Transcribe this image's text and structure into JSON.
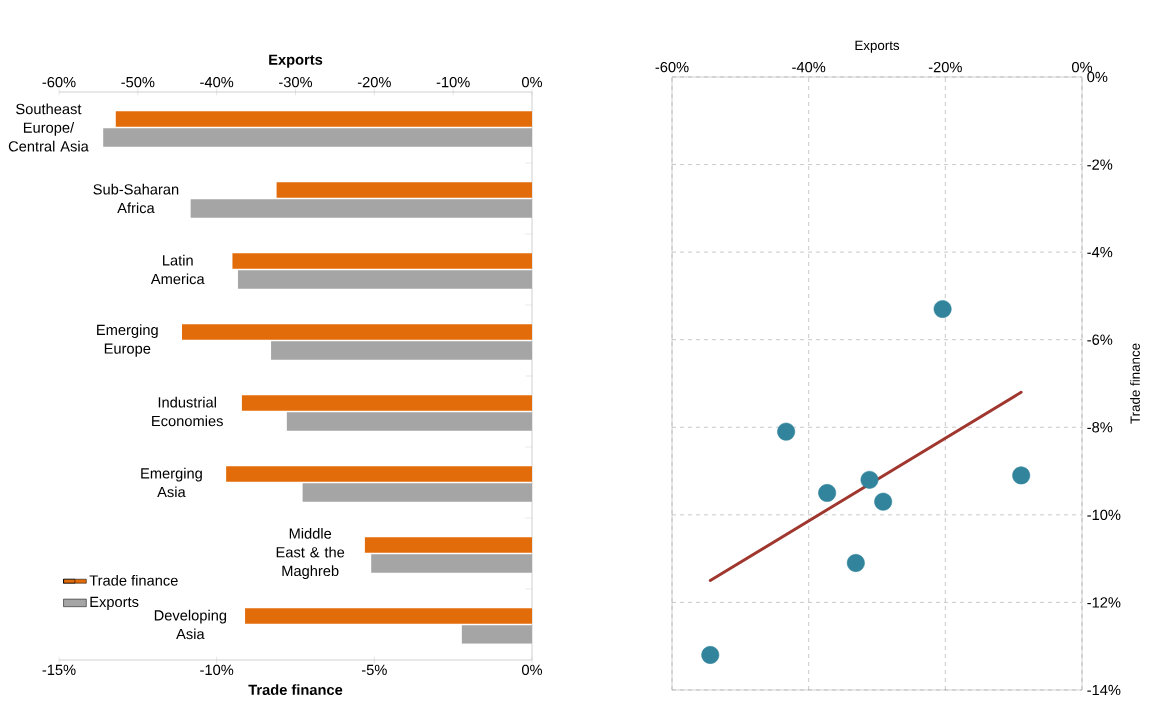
{
  "chart_data": [
    {
      "type": "bar",
      "orientation": "horizontal",
      "categories": [
        "Southeast Europe/ Central Asia",
        "Sub-Saharan Africa",
        "Latin America",
        "Emerging Europe",
        "Industrial Economies",
        "Emerging Asia",
        "Middle East & the Maghreb",
        "Developing Asia"
      ],
      "series": [
        {
          "name": "Trade finance",
          "color": "#e36c0a",
          "values": [
            -13.2,
            -8.1,
            -9.5,
            -11.1,
            -9.2,
            -9.7,
            -5.3,
            -9.1
          ]
        },
        {
          "name": "Exports",
          "color": "#a5a5a5",
          "axis": "x2",
          "values": [
            -54.4,
            -43.3,
            -37.3,
            -33.1,
            -31.1,
            -29.1,
            -20.4,
            -8.9
          ]
        }
      ],
      "xlabel": "Trade finance",
      "x2label": "Exports",
      "xlim": [
        -15,
        0
      ],
      "xticks": [
        {
          "value": -15,
          "label": "-15%"
        },
        {
          "value": -10,
          "label": "-10%"
        },
        {
          "value": -5,
          "label": "-5%"
        },
        {
          "value": 0,
          "label": "0%"
        }
      ],
      "x2lim": [
        -60,
        0
      ],
      "x2ticks": [
        {
          "value": -60,
          "label": "-60%"
        },
        {
          "value": -50,
          "label": "-50%"
        },
        {
          "value": -40,
          "label": "-40%"
        },
        {
          "value": -30,
          "label": "-30%"
        },
        {
          "value": -20,
          "label": "-20%"
        },
        {
          "value": -10,
          "label": "-10%"
        },
        {
          "value": 0,
          "label": "0%"
        }
      ],
      "legend": "bottom left"
    },
    {
      "type": "scatter",
      "xlabel": "Exports",
      "ylabel": "Trade finance",
      "grid": true,
      "xlim": [
        -60,
        0
      ],
      "xticks": [
        {
          "value": -60,
          "label": "-60%"
        },
        {
          "value": -40,
          "label": "-40%"
        },
        {
          "value": -20,
          "label": "-20%"
        },
        {
          "value": 0,
          "label": "0%"
        }
      ],
      "ylim": [
        -14,
        0
      ],
      "yticks": [
        {
          "value": -14,
          "label": "-14%"
        },
        {
          "value": -12,
          "label": "-12%"
        },
        {
          "value": -10,
          "label": "-10%"
        },
        {
          "value": -8,
          "label": "-8%"
        },
        {
          "value": -6,
          "label": "-6%"
        },
        {
          "value": -4,
          "label": "-4%"
        },
        {
          "value": -2,
          "label": "-2%"
        },
        {
          "value": 0,
          "label": "0%"
        }
      ],
      "series": [
        {
          "type": "scatter",
          "color": "#31849b",
          "marker": "circle",
          "x": [
            -54.4,
            -43.3,
            -37.3,
            -33.1,
            -31.1,
            -29.1,
            -20.4,
            -8.9
          ],
          "values": [
            -13.2,
            -8.1,
            -9.5,
            -11.1,
            -9.2,
            -9.7,
            -5.3,
            -9.1
          ]
        },
        {
          "type": "line",
          "color": "#a0372f",
          "x": [
            -54.4,
            -8.9
          ],
          "values": [
            -11.5,
            -7.2
          ]
        }
      ]
    }
  ]
}
